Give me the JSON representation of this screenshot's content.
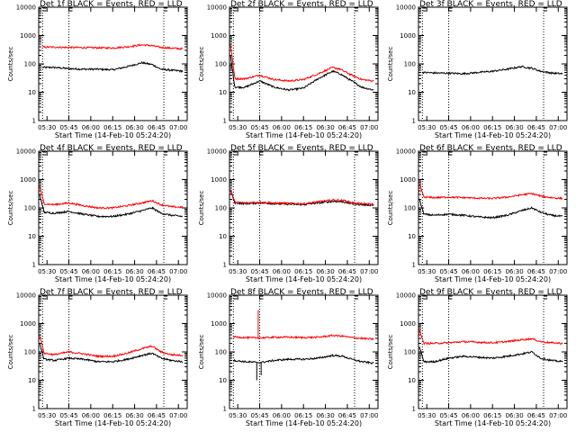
{
  "figure": {
    "xlabel": "Start Time (14-Feb-10 05:24:20)",
    "ylabel": "Counts/sec",
    "xticks": [
      "05:30",
      "05:45",
      "06:00",
      "06:15",
      "06:30",
      "06:45",
      "07:00"
    ],
    "yticks": [
      "1",
      "10",
      "100",
      "1000",
      "10000"
    ],
    "colors": {
      "black": "#000000",
      "red": "#ff0000",
      "background": "#ffffff"
    }
  },
  "chart_data": [
    {
      "type": "line",
      "title": "Det 1f BLACK = Events, RED = LLD",
      "xlabel": "Start Time (14-Feb-10 05:24:20)",
      "ylabel": "Counts/sec",
      "ylim": [
        1,
        10000
      ],
      "yscale": "log",
      "x": [
        "05:27",
        "05:35",
        "05:45",
        "05:55",
        "06:05",
        "06:15",
        "06:25",
        "06:35",
        "06:42",
        "06:48",
        "06:55",
        "07:03"
      ],
      "series": [
        {
          "color": "black",
          "values": [
            75,
            75,
            68,
            65,
            65,
            62,
            80,
            110,
            95,
            65,
            60,
            55
          ]
        },
        {
          "color": "red",
          "values": [
            390,
            390,
            380,
            375,
            370,
            365,
            400,
            470,
            440,
            380,
            360,
            340
          ]
        }
      ],
      "markers": [
        "05:27",
        "05:45",
        "06:50"
      ]
    },
    {
      "type": "line",
      "title": "Det 2f BLACK = Events, RED = LLD",
      "xlabel": "Start Time (14-Feb-10 05:24:20)",
      "ylabel": "Counts/sec",
      "ylim": [
        1,
        10000
      ],
      "yscale": "log",
      "x": [
        "05:25",
        "05:28",
        "05:35",
        "05:45",
        "05:55",
        "06:05",
        "06:15",
        "06:25",
        "06:35",
        "06:40",
        "06:48",
        "06:55",
        "07:03"
      ],
      "series": [
        {
          "color": "black",
          "values": [
            200,
            15,
            15,
            25,
            15,
            12,
            14,
            30,
            55,
            45,
            25,
            15,
            12
          ]
        },
        {
          "color": "red",
          "values": [
            500,
            30,
            30,
            40,
            28,
            25,
            28,
            45,
            75,
            65,
            40,
            28,
            25
          ]
        }
      ],
      "markers": [
        "05:27",
        "05:45",
        "06:50"
      ]
    },
    {
      "type": "line",
      "title": "Det 3f BLACK = Events, RED = LLD",
      "xlabel": "Start Time (14-Feb-10 05:24:20)",
      "ylabel": "Counts/sec",
      "ylim": [
        1,
        10000
      ],
      "yscale": "log",
      "x": [
        "05:27",
        "05:35",
        "05:45",
        "05:55",
        "06:05",
        "06:15",
        "06:25",
        "06:35",
        "06:42",
        "06:48",
        "06:55",
        "07:03"
      ],
      "series": [
        {
          "color": "black",
          "values": [
            50,
            48,
            47,
            45,
            50,
            55,
            65,
            80,
            70,
            55,
            48,
            45
          ]
        }
      ],
      "markers": [
        "05:27",
        "05:45",
        "06:50"
      ]
    },
    {
      "type": "line",
      "title": "Det 4f BLACK = Events, RED = LLD",
      "xlabel": "Start Time (14-Feb-10 05:24:20)",
      "ylabel": "Counts/sec",
      "ylim": [
        1,
        10000
      ],
      "yscale": "log",
      "x": [
        "05:25",
        "05:28",
        "05:35",
        "05:45",
        "05:55",
        "06:05",
        "06:15",
        "06:25",
        "06:35",
        "06:42",
        "06:48",
        "06:55",
        "07:03"
      ],
      "series": [
        {
          "color": "black",
          "values": [
            300,
            70,
            65,
            75,
            60,
            50,
            50,
            60,
            80,
            100,
            65,
            55,
            50
          ]
        },
        {
          "color": "red",
          "values": [
            600,
            140,
            130,
            150,
            120,
            100,
            100,
            120,
            150,
            180,
            130,
            110,
            105
          ]
        }
      ],
      "markers": [
        "05:27",
        "05:45",
        "06:50"
      ]
    },
    {
      "type": "line",
      "title": "Det 5f BLACK = Events, RED = LLD",
      "xlabel": "Start Time (14-Feb-10 05:24:20)",
      "ylabel": "Counts/sec",
      "ylim": [
        1,
        10000
      ],
      "yscale": "log",
      "x": [
        "05:25",
        "05:28",
        "05:35",
        "05:45",
        "05:55",
        "06:05",
        "06:15",
        "06:25",
        "06:35",
        "06:42",
        "06:48",
        "06:55",
        "07:03"
      ],
      "series": [
        {
          "color": "black",
          "values": [
            400,
            150,
            140,
            150,
            140,
            135,
            130,
            150,
            170,
            165,
            140,
            130,
            125
          ]
        },
        {
          "color": "red",
          "values": [
            450,
            160,
            150,
            160,
            150,
            145,
            140,
            165,
            190,
            185,
            155,
            140,
            135
          ]
        }
      ],
      "markers": [
        "05:27",
        "05:45",
        "06:50"
      ]
    },
    {
      "type": "line",
      "title": "Det 6f BLACK = Events, RED = LLD",
      "xlabel": "Start Time (14-Feb-10 05:24:20)",
      "ylabel": "Counts/sec",
      "ylim": [
        1,
        10000
      ],
      "yscale": "log",
      "x": [
        "05:25",
        "05:28",
        "05:35",
        "05:45",
        "05:55",
        "06:05",
        "06:15",
        "06:25",
        "06:35",
        "06:42",
        "06:48",
        "06:55",
        "07:03"
      ],
      "series": [
        {
          "color": "black",
          "values": [
            200,
            60,
            55,
            60,
            55,
            48,
            45,
            55,
            80,
            100,
            70,
            55,
            50
          ]
        },
        {
          "color": "red",
          "values": [
            700,
            240,
            230,
            240,
            230,
            220,
            215,
            240,
            290,
            320,
            260,
            230,
            215
          ]
        }
      ],
      "markers": [
        "05:27",
        "05:45",
        "06:50"
      ]
    },
    {
      "type": "line",
      "title": "Det 7f BLACK = Events, RED = LLD",
      "xlabel": "Start Time (14-Feb-10 05:24:20)",
      "ylabel": "Counts/sec",
      "ylim": [
        1,
        10000
      ],
      "yscale": "log",
      "x": [
        "05:25",
        "05:28",
        "05:35",
        "05:45",
        "05:55",
        "06:05",
        "06:15",
        "06:25",
        "06:35",
        "06:42",
        "06:48",
        "06:55",
        "07:03"
      ],
      "series": [
        {
          "color": "black",
          "values": [
            200,
            55,
            50,
            60,
            55,
            45,
            45,
            55,
            75,
            90,
            60,
            50,
            45
          ]
        },
        {
          "color": "red",
          "values": [
            400,
            90,
            80,
            100,
            85,
            70,
            70,
            90,
            130,
            160,
            100,
            80,
            75
          ]
        }
      ],
      "markers": [
        "05:27",
        "05:45",
        "06:50"
      ]
    },
    {
      "type": "line",
      "title": "Det 8f BLACK = Events, RED = LLD",
      "xlabel": "Start Time (14-Feb-10 05:24:20)",
      "ylabel": "Counts/sec",
      "ylim": [
        1,
        10000
      ],
      "yscale": "log",
      "x": [
        "05:27",
        "05:35",
        "05:45",
        "05:55",
        "06:05",
        "06:15",
        "06:25",
        "06:35",
        "06:42",
        "06:48",
        "06:55",
        "07:03"
      ],
      "series": [
        {
          "color": "black",
          "values": [
            50,
            45,
            42,
            50,
            55,
            55,
            60,
            75,
            70,
            55,
            45,
            40
          ]
        },
        {
          "color": "red",
          "values": [
            340,
            320,
            310,
            330,
            330,
            320,
            330,
            380,
            360,
            320,
            300,
            280
          ]
        }
      ],
      "spikes": [
        {
          "color": "red",
          "x": "05:44",
          "value": 3000
        },
        {
          "color": "black",
          "x": "05:43",
          "value": 10
        },
        {
          "color": "black",
          "x": "05:46",
          "value": 15
        }
      ],
      "markers": [
        "05:27",
        "05:45",
        "06:50"
      ]
    },
    {
      "type": "line",
      "title": "Det 9f BLACK = Events, RED = LLD",
      "xlabel": "Start Time (14-Feb-10 05:24:20)",
      "ylabel": "Counts/sec",
      "ylim": [
        1,
        10000
      ],
      "yscale": "log",
      "x": [
        "05:25",
        "05:28",
        "05:35",
        "05:45",
        "05:55",
        "06:05",
        "06:15",
        "06:25",
        "06:35",
        "06:42",
        "06:48",
        "06:55",
        "07:03"
      ],
      "series": [
        {
          "color": "black",
          "values": [
            150,
            45,
            45,
            60,
            70,
            65,
            60,
            70,
            85,
            100,
            60,
            50,
            45
          ]
        },
        {
          "color": "red",
          "values": [
            600,
            200,
            200,
            210,
            230,
            220,
            210,
            230,
            270,
            290,
            230,
            210,
            200
          ]
        }
      ],
      "markers": [
        "05:27",
        "05:45",
        "06:50"
      ]
    }
  ]
}
